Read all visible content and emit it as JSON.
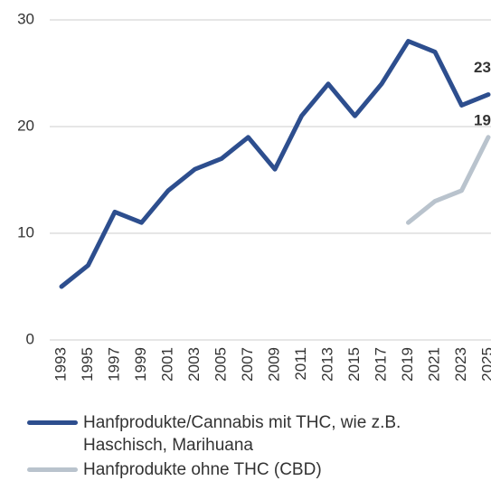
{
  "chart_data": {
    "type": "line",
    "categories": [
      "1993",
      "1995",
      "1997",
      "1999",
      "2001",
      "2003",
      "2005",
      "2007",
      "2009",
      "2011",
      "2013",
      "2015",
      "2017",
      "2019",
      "2021",
      "2023",
      "2025"
    ],
    "series": [
      {
        "name": "Hanfprodukte/Cannabis mit THC, wie z.B. Haschisch, Marihuana",
        "color": "#2d4e8e",
        "values": [
          5,
          7,
          12,
          11,
          14,
          16,
          17,
          19,
          16,
          21,
          24,
          21,
          24,
          28,
          27,
          22,
          23
        ]
      },
      {
        "name": "Hanfprodukte ohne THC (CBD)",
        "color": "#b9c3cd",
        "values": [
          null,
          null,
          null,
          null,
          null,
          null,
          null,
          null,
          null,
          null,
          null,
          null,
          null,
          11,
          13,
          14,
          19
        ]
      }
    ],
    "ylim": [
      0,
      30
    ],
    "yticks": [
      0,
      10,
      20,
      30
    ],
    "grid": true
  }
}
